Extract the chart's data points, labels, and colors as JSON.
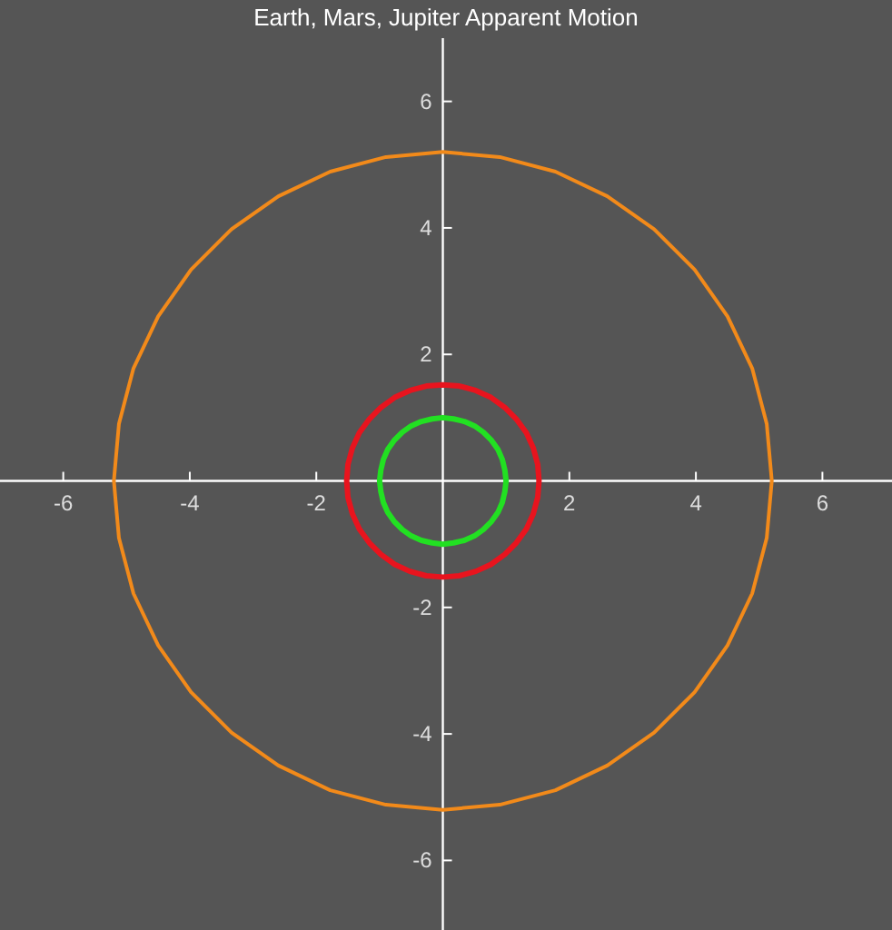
{
  "chart_data": {
    "type": "line",
    "title": "Earth, Mars, Jupiter Apparent Motion",
    "xlim": [
      -7,
      7.1
    ],
    "ylim": [
      -7.1,
      7
    ],
    "xticks": [
      -6,
      -4,
      -2,
      2,
      4,
      6
    ],
    "yticks": [
      -6,
      -4,
      -2,
      2,
      4,
      6
    ],
    "grid": false,
    "marker": "none",
    "line_style": "solid",
    "series": [
      {
        "color": "#f28a1a",
        "x": [
          5.2,
          5.12,
          4.89,
          4.5,
          3.98,
          3.34,
          2.6,
          1.78,
          0.9,
          0,
          -0.9,
          -1.78,
          -2.6,
          -3.34,
          -3.98,
          -4.5,
          -4.89,
          -5.12,
          -5.2,
          -5.12,
          -4.89,
          -4.5,
          -3.98,
          -3.34,
          -2.6,
          -1.78,
          -0.9,
          0,
          0.9,
          1.78,
          2.6,
          3.34,
          3.98,
          4.5,
          4.89,
          5.12,
          5.2,
          5.12
        ],
        "values": [
          0,
          0.9,
          1.78,
          2.6,
          3.34,
          3.98,
          4.5,
          4.89,
          5.12,
          5.2,
          5.12,
          4.89,
          4.5,
          3.98,
          3.34,
          2.6,
          1.78,
          0.9,
          0,
          -0.9,
          -1.78,
          -2.6,
          -3.34,
          -3.98,
          -4.5,
          -4.89,
          -5.12,
          -5.2,
          -5.12,
          -4.89,
          -4.5,
          -3.98,
          -3.34,
          -2.6,
          -1.78,
          -0.9,
          0,
          0.9
        ]
      },
      {
        "color": "#e8141e",
        "x": [
          1.52,
          1.5,
          1.43,
          1.32,
          1.16,
          0.98,
          0.76,
          0.52,
          0.26,
          0,
          -0.26,
          -0.52,
          -0.76,
          -0.98,
          -1.16,
          -1.32,
          -1.43,
          -1.5,
          -1.52,
          -1.5,
          -1.43,
          -1.32,
          -1.16,
          -0.98,
          -0.76,
          -0.52,
          -0.26,
          0,
          0.26,
          0.52,
          0.76,
          0.98,
          1.16,
          1.32,
          1.43,
          1.5,
          1.52,
          1.5
        ],
        "values": [
          0,
          0.26,
          0.52,
          0.76,
          0.98,
          1.16,
          1.32,
          1.43,
          1.5,
          1.52,
          1.5,
          1.43,
          1.32,
          1.16,
          0.98,
          0.76,
          0.52,
          0.26,
          0,
          -0.26,
          -0.52,
          -0.76,
          -0.98,
          -1.16,
          -1.32,
          -1.43,
          -1.5,
          -1.52,
          -1.5,
          -1.43,
          -1.32,
          -1.16,
          -0.98,
          -0.76,
          -0.52,
          -0.26,
          0,
          0.26
        ]
      },
      {
        "color": "#22e022",
        "x": [
          1,
          0.98,
          0.94,
          0.87,
          0.77,
          0.64,
          0.5,
          0.34,
          0.17,
          0,
          -0.17,
          -0.34,
          -0.5,
          -0.64,
          -0.77,
          -0.87,
          -0.94,
          -0.98,
          -1,
          -0.98,
          -0.94,
          -0.87,
          -0.77,
          -0.64,
          -0.5,
          -0.34,
          -0.17,
          0,
          0.17,
          0.34,
          0.5,
          0.64,
          0.77,
          0.87,
          0.94,
          0.98,
          1,
          0.98
        ],
        "values": [
          0,
          0.17,
          0.34,
          0.5,
          0.64,
          0.77,
          0.87,
          0.94,
          0.98,
          1,
          0.98,
          0.94,
          0.87,
          0.77,
          0.64,
          0.5,
          0.34,
          0.17,
          0,
          -0.17,
          -0.34,
          -0.5,
          -0.64,
          -0.77,
          -0.87,
          -0.94,
          -0.98,
          -1,
          -0.98,
          -0.94,
          -0.87,
          -0.77,
          -0.64,
          -0.5,
          -0.34,
          -0.17,
          0,
          0.17
        ]
      }
    ]
  }
}
